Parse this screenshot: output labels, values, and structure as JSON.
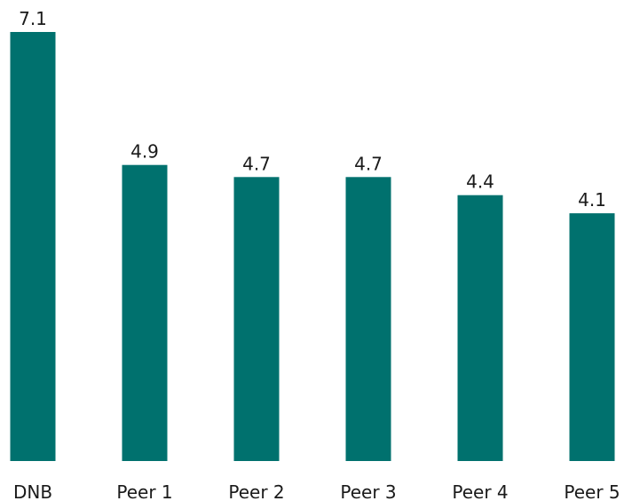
{
  "chart_data": {
    "type": "bar",
    "categories": [
      "DNB",
      "Peer 1",
      "Peer 2",
      "Peer 3",
      "Peer 4",
      "Peer 5"
    ],
    "values": [
      7.1,
      4.9,
      4.7,
      4.7,
      4.4,
      4.1
    ],
    "data_labels": [
      "7.1",
      "4.9",
      "4.7",
      "4.7",
      "4.4",
      "4.1"
    ],
    "title": "",
    "xlabel": "",
    "ylabel": "",
    "ylim": [
      0,
      7.1
    ],
    "grid": false,
    "legend": "none",
    "bar_color": "#00716e"
  }
}
